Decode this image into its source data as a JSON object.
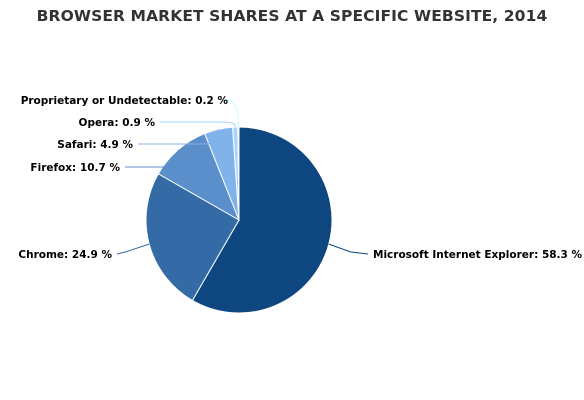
{
  "chart_data": {
    "type": "pie",
    "title": "BROWSER MARKET SHARES AT A SPECIFIC WEBSITE, 2014",
    "slices": [
      {
        "name": "Microsoft Internet Explorer",
        "value": 58.3,
        "label": "Microsoft Internet Explorer: 58.3 %",
        "color": "#0e467f"
      },
      {
        "name": "Chrome",
        "value": 24.9,
        "label": "Chrome: 24.9 %",
        "color": "#346ba6"
      },
      {
        "name": "Firefox",
        "value": 10.7,
        "label": "Firefox: 10.7 %",
        "color": "#5b8fcb"
      },
      {
        "name": "Safari",
        "value": 4.9,
        "label": "Safari: 4.9 %",
        "color": "#80b3ea"
      },
      {
        "name": "Opera",
        "value": 0.9,
        "label": "Opera: 0.9 %",
        "color": "#a6d6ff"
      },
      {
        "name": "Proprietary or Undetectable",
        "value": 0.2,
        "label": "Proprietary or Undetectable: 0.2 %",
        "color": "#cdfcff"
      }
    ]
  }
}
